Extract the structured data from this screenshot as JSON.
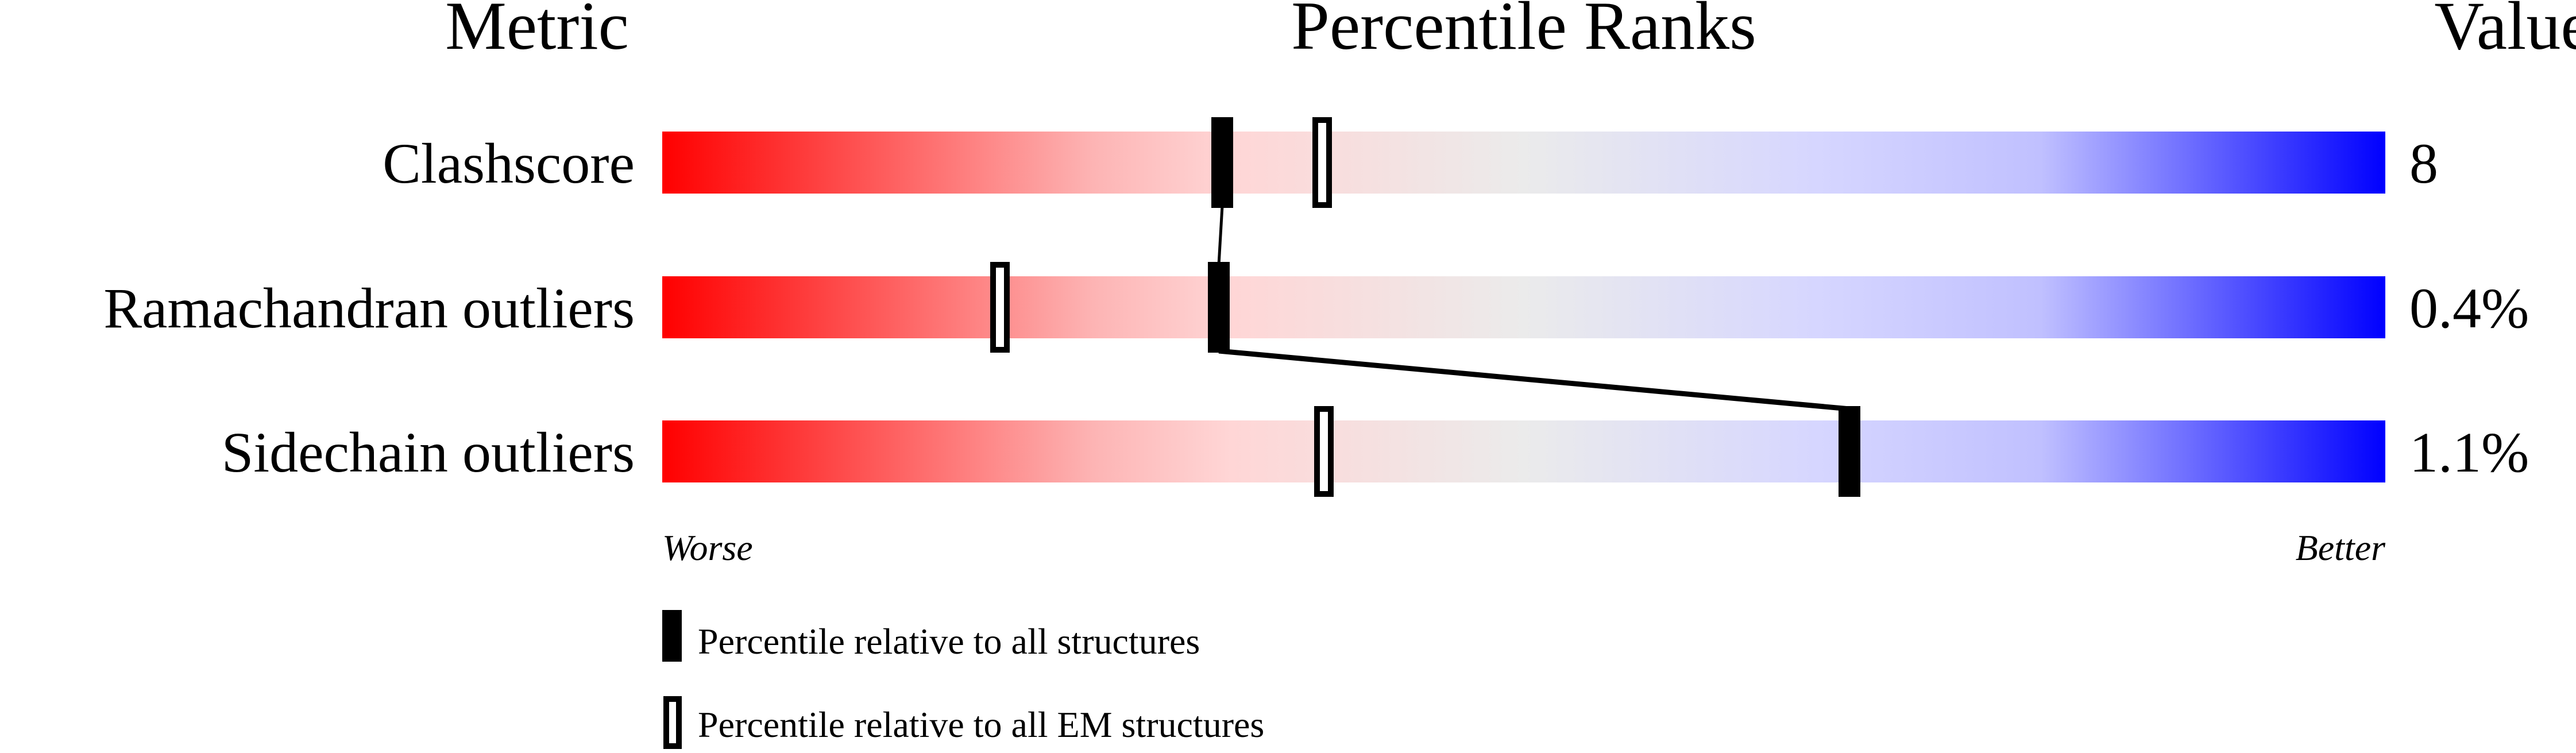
{
  "chart_data": {
    "type": "percentile-ranks",
    "headers": {
      "metric": "Metric",
      "ranks": "Percentile Ranks",
      "value": "Value"
    },
    "xlim": [
      0,
      100
    ],
    "axis_labels": {
      "left": "Worse",
      "right": "Better"
    },
    "gradient_colors": [
      "#ff0000",
      "#ffd6d6",
      "#ebebeb",
      "#d6d6ff",
      "#0000ff"
    ],
    "rows": [
      {
        "metric": "Clashscore",
        "value": "8",
        "percentile_all": 32.5,
        "percentile_em": 38.3
      },
      {
        "metric": "Ramachandran outliers",
        "value": "0.4%",
        "percentile_all": 32.3,
        "percentile_em": 19.6
      },
      {
        "metric": "Sidechain outliers",
        "value": "1.1%",
        "percentile_all": 68.9,
        "percentile_em": 38.4
      }
    ],
    "legend": [
      {
        "marker": "filled",
        "label": "Percentile relative to all structures"
      },
      {
        "marker": "open",
        "label": "Percentile relative to all EM structures"
      }
    ]
  }
}
